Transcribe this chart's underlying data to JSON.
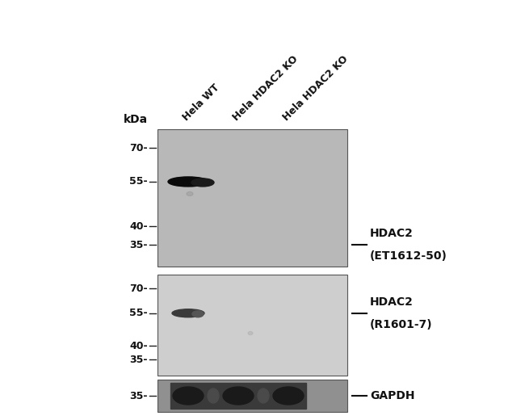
{
  "background_color": "#ffffff",
  "col_labels": [
    "Hela WT",
    "Hela HDAC2 KO",
    "Hela HDAC2 KO"
  ],
  "kda_label": "kDa",
  "panel1_bg": "#b8b8b8",
  "panel2_bg": "#cecece",
  "panel3_bg": "#909090",
  "panel_edge": "#555555",
  "label1": "HDAC2",
  "label1b": "(ET1612-50)",
  "label2": "HDAC2",
  "label2b": "(R1601-7)",
  "label3": "GAPDH",
  "text_color": "#111111",
  "band_color_dark": "#111111",
  "band_color_mid": "#444444",
  "band_color_gapdh": "#222222"
}
